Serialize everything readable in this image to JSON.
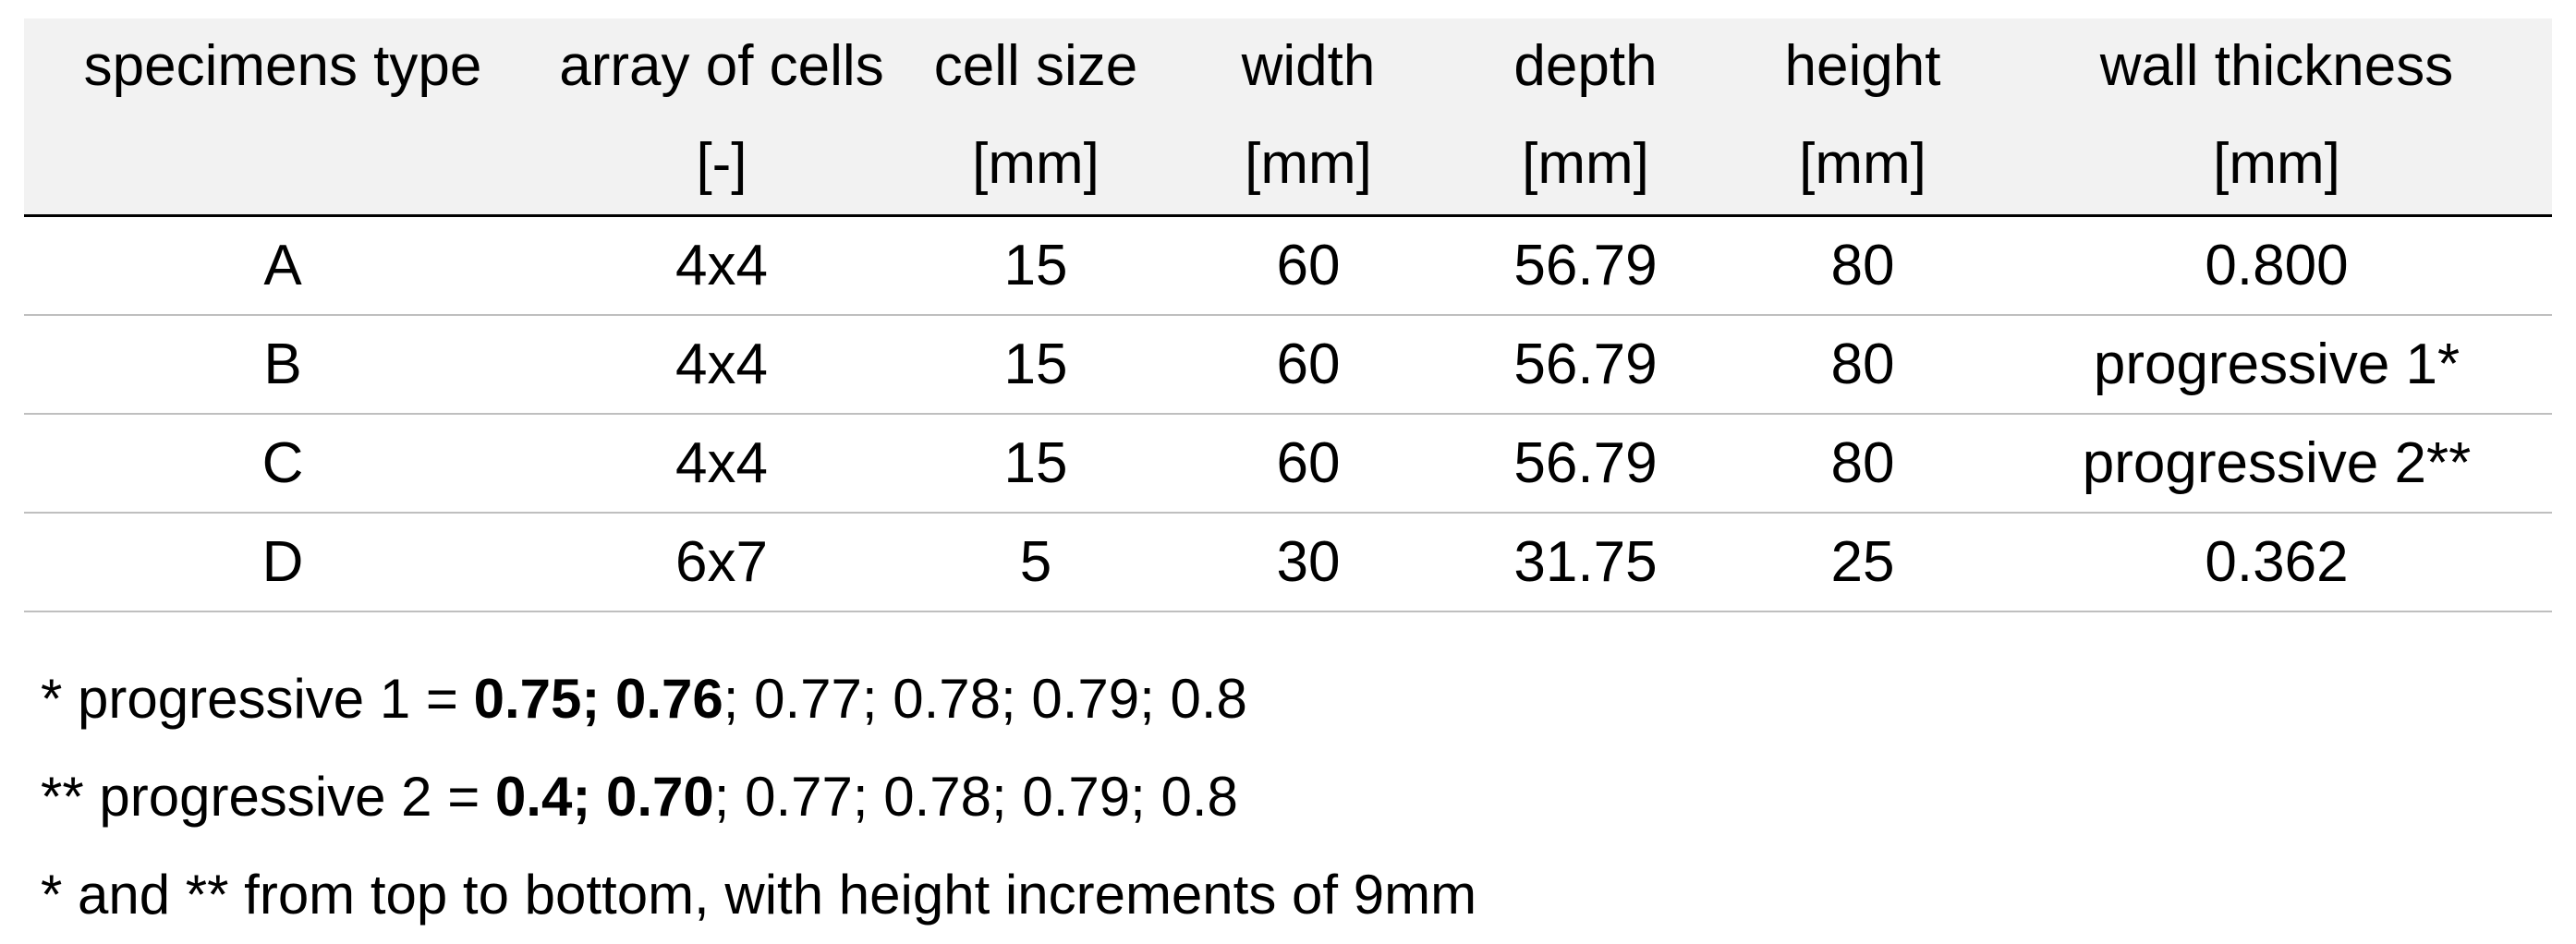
{
  "table": {
    "headers": [
      {
        "name": "specimens type",
        "unit": ""
      },
      {
        "name": "array of cells",
        "unit": "[-]"
      },
      {
        "name": "cell size",
        "unit": "[mm]"
      },
      {
        "name": "width",
        "unit": "[mm]"
      },
      {
        "name": "depth",
        "unit": "[mm]"
      },
      {
        "name": "height",
        "unit": "[mm]"
      },
      {
        "name": "wall thickness",
        "unit": "[mm]"
      }
    ],
    "rows": [
      [
        "A",
        "4x4",
        "15",
        "60",
        "56.79",
        "80",
        "0.800"
      ],
      [
        "B",
        "4x4",
        "15",
        "60",
        "56.79",
        "80",
        "progressive 1*"
      ],
      [
        "C",
        "4x4",
        "15",
        "60",
        "56.79",
        "80",
        "progressive 2**"
      ],
      [
        "D",
        "6x7",
        "5",
        "30",
        "31.75",
        "25",
        "0.362"
      ]
    ]
  },
  "notes": {
    "note1": {
      "prefix": "* progressive 1 = ",
      "bold": "0.75; 0.76",
      "rest": "; 0.77; 0.78; 0.79; 0.8"
    },
    "note2": {
      "prefix": "** progressive 2 = ",
      "bold": "0.4; 0.70",
      "rest": "; 0.77; 0.78; 0.79; 0.8"
    },
    "note3": "* and ** from top to bottom, with height increments of 9mm"
  }
}
